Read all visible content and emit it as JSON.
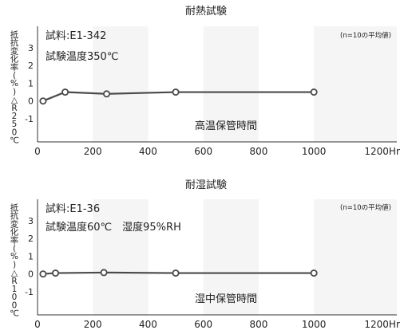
{
  "chart_data": [
    {
      "type": "line",
      "title": "耐熱試験",
      "sample_label": "試料:E1-342",
      "condition_label": "試験温度350℃",
      "note": "(n=10の平均値)",
      "ylabel": "抵抗変化率(%)△R250℃",
      "series_label": "高温保管時間",
      "x_tick_labels": [
        "0",
        "200",
        "400",
        "600",
        "800",
        "1000",
        "1200Hr"
      ],
      "y_tick_labels": [
        "3",
        "2",
        "1",
        "0",
        "-1"
      ],
      "x_ticks": [
        0,
        200,
        400,
        600,
        800,
        1000,
        1200
      ],
      "y_ticks": [
        3,
        2,
        1,
        0,
        -1
      ],
      "xlim": [
        0,
        1300
      ],
      "ylim": [
        -2.3,
        4.2
      ],
      "x": [
        20,
        100,
        250,
        500,
        1000
      ],
      "values": [
        0.0,
        0.5,
        0.4,
        0.5,
        0.5
      ]
    },
    {
      "type": "line",
      "title": "耐湿試験",
      "sample_label": "試料:E1-36",
      "condition_label": "試験温度60℃　湿度95%RH",
      "note": "(n=10の平均値)",
      "ylabel": "抵抗変化率(%)△R100℃",
      "series_label": "湿中保管時間",
      "x_tick_labels": [
        "0",
        "200",
        "400",
        "600",
        "800",
        "1000",
        "1200Hr"
      ],
      "y_tick_labels": [
        "3",
        "2",
        "1",
        "0",
        "-1"
      ],
      "x_ticks": [
        0,
        200,
        400,
        600,
        800,
        1000,
        1200
      ],
      "y_ticks": [
        3,
        2,
        1,
        0,
        -1
      ],
      "xlim": [
        0,
        1300
      ],
      "ylim": [
        -2.3,
        4.2
      ],
      "x": [
        20,
        65,
        240,
        500,
        1000
      ],
      "values": [
        0.0,
        0.05,
        0.08,
        0.05,
        0.05
      ]
    }
  ],
  "colors": {
    "plot_background": "#f5f5f5",
    "alternate_band": "#ffffff",
    "line": "#4a4a4a",
    "marker_fill": "#ffffff",
    "axis": "#333333",
    "text": "#222222"
  }
}
